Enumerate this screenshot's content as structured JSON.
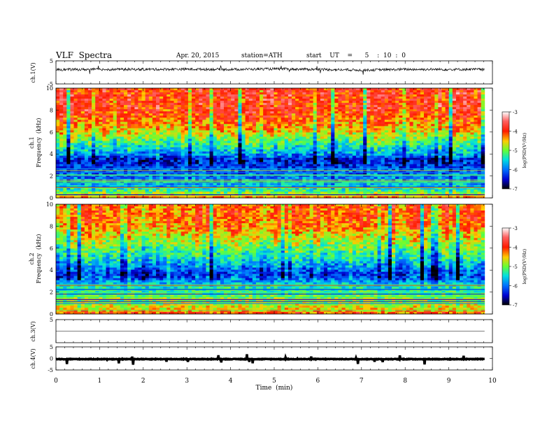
{
  "header": {
    "title": "VLF  Spectra",
    "date": "Apr. 20, 2015",
    "station": "station=ATH",
    "start": "start  UT  =   5  : 10 : 0"
  },
  "chart_data": [
    {
      "id": "ch1-waveform",
      "type": "line",
      "ylabel": "ch.1(V)",
      "ylim": [
        -5,
        5
      ],
      "y_ticks": [
        "5",
        "-5"
      ],
      "xlim": [
        0,
        10
      ],
      "x_data_end": 9.82,
      "baseline_by_minute": {
        "x": [
          0,
          1,
          2,
          3,
          4,
          5,
          6,
          7,
          8,
          9,
          9.82
        ],
        "y": [
          1.2,
          1.3,
          1.3,
          1.4,
          1.3,
          1.5,
          1.3,
          1.0,
          1.3,
          1.3,
          1.3
        ]
      },
      "description_note": ""
    },
    {
      "id": "ch1-spectrogram",
      "type": "heatmap",
      "ylabel": "ch.1\nFrequency  (kHz)",
      "ylim": [
        0,
        10
      ],
      "y_ticks": [
        "0",
        "2",
        "4",
        "6",
        "8",
        "10"
      ],
      "xlim": [
        0,
        10
      ],
      "x_data_end": 9.82,
      "colorbar": {
        "label": "log(PSD(V²/Hz)",
        "range": [
          -7,
          -3
        ],
        "ticks": [
          "-3",
          "-4",
          "-5",
          "-6",
          "-7"
        ]
      },
      "level_vs_frequency": {
        "freq_kHz": [
          0,
          0.5,
          1,
          1.5,
          2,
          2.5,
          3,
          3.5,
          4,
          5,
          6,
          7,
          8,
          9,
          10
        ],
        "logPSD": [
          -4.2,
          -5.0,
          -5.6,
          -5.8,
          -6.0,
          -6.1,
          -6.3,
          -6.4,
          -5.8,
          -5.2,
          -4.6,
          -4.2,
          -3.9,
          -3.9,
          -3.9
        ]
      }
    },
    {
      "id": "ch2-spectrogram",
      "type": "heatmap",
      "ylabel": "ch.2\nFrequency  (kHz)",
      "ylim": [
        0,
        10
      ],
      "y_ticks": [
        "0",
        "2",
        "4",
        "6",
        "8",
        "10"
      ],
      "xlim": [
        0,
        10
      ],
      "x_data_end": 9.82,
      "colorbar": {
        "label": "log(PSD(V²/Hz)",
        "range": [
          -7,
          -3
        ],
        "ticks": [
          "-3",
          "-4",
          "-5",
          "-6",
          "-7"
        ]
      },
      "level_vs_frequency": {
        "freq_kHz": [
          0,
          0.5,
          1,
          1.5,
          2,
          2.5,
          3,
          3.5,
          4,
          5,
          6,
          7,
          8,
          9,
          10
        ],
        "logPSD": [
          -4.0,
          -4.6,
          -4.8,
          -5.0,
          -5.2,
          -5.4,
          -5.8,
          -6.2,
          -6.0,
          -5.4,
          -5.0,
          -4.6,
          -4.2,
          -4.1,
          -4.1
        ]
      }
    },
    {
      "id": "ch3-waveform",
      "type": "line",
      "ylabel": "ch.3(V)",
      "ylim": [
        -5,
        5
      ],
      "y_ticks": [
        "5"
      ],
      "xlim": [
        0,
        10
      ],
      "x_data_end": 9.82,
      "baseline_by_minute": {
        "x": [
          0,
          9.82
        ],
        "y": [
          0,
          0
        ]
      }
    },
    {
      "id": "ch4-waveform",
      "type": "line",
      "ylabel": "ch.4(V)",
      "ylim": [
        -5,
        5
      ],
      "y_ticks": [
        "5",
        "0",
        "-5"
      ],
      "xlim": [
        0,
        10
      ],
      "x_data_end": 9.82,
      "baseline_by_minute": {
        "x": [
          0,
          9.82
        ],
        "y": [
          -0.3,
          -0.3
        ]
      }
    }
  ],
  "x_axis": {
    "label": "Time  (min)",
    "ticks": [
      "0",
      "1",
      "2",
      "3",
      "4",
      "5",
      "6",
      "7",
      "8",
      "9",
      "10"
    ]
  }
}
